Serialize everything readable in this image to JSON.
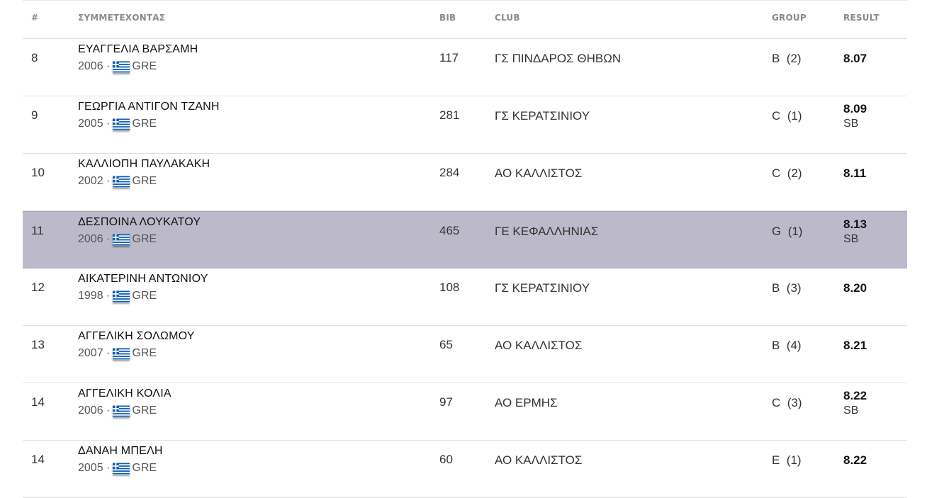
{
  "table": {
    "headers": {
      "rank": "#",
      "name": "ΣΥΜΜΕΤΕΧΟΝΤΑΣ",
      "bib": "BIB",
      "club": "CLUB",
      "group": "GROUP",
      "result": "RESULT"
    },
    "rows": [
      {
        "rank": "8",
        "name": "ΕΥΑΓΓΕΛΙΑ ΒΑΡΣΑΜΗ",
        "year": "2006",
        "country": "GRE",
        "bib": "117",
        "club": "ΓΣ ΠΙΝΔΑΡΟΣ ΘΗΒΩΝ",
        "group": "B",
        "group_pos": "(2)",
        "result": "8.07",
        "note": ""
      },
      {
        "rank": "9",
        "name": "ΓΕΩΡΓΙΑ ΑΝΤΙΓΟΝ ΤΖΑΝΗ",
        "year": "2005",
        "country": "GRE",
        "bib": "281",
        "club": "ΓΣ ΚΕΡΑΤΣΙΝΙΟΥ",
        "group": "C",
        "group_pos": "(1)",
        "result": "8.09",
        "note": "SB"
      },
      {
        "rank": "10",
        "name": "ΚΑΛΛΙΟΠΗ ΠΑΥΛΑΚΑΚΗ",
        "year": "2002",
        "country": "GRE",
        "bib": "284",
        "club": "ΑΟ ΚΑΛΛΙΣΤΟΣ",
        "group": "C",
        "group_pos": "(2)",
        "result": "8.11",
        "note": ""
      },
      {
        "rank": "11",
        "name": "ΔΕΣΠΟΙΝΑ ΛΟΥΚΑΤΟΥ",
        "year": "2006",
        "country": "GRE",
        "bib": "465",
        "club": "ΓΕ ΚΕΦΑΛΛΗΝΙΑΣ",
        "group": "G",
        "group_pos": "(1)",
        "result": "8.13",
        "note": "SB",
        "highlight": true
      },
      {
        "rank": "12",
        "name": "ΑΙΚΑΤΕΡΙΝΗ ΑΝΤΩΝΙΟΥ",
        "year": "1998",
        "country": "GRE",
        "bib": "108",
        "club": "ΓΣ ΚΕΡΑΤΣΙΝΙΟΥ",
        "group": "B",
        "group_pos": "(3)",
        "result": "8.20",
        "note": ""
      },
      {
        "rank": "13",
        "name": "ΑΓΓΕΛΙΚΗ ΣΟΛΩΜΟΥ",
        "year": "2007",
        "country": "GRE",
        "bib": "65",
        "club": "ΑΟ ΚΑΛΛΙΣΤΟΣ",
        "group": "B",
        "group_pos": "(4)",
        "result": "8.21",
        "note": ""
      },
      {
        "rank": "14",
        "name": "ΑΓΓΕΛΙΚΗ ΚΟΛΙΑ",
        "year": "2006",
        "country": "GRE",
        "bib": "97",
        "club": "ΑΟ ΕΡΜΗΣ",
        "group": "C",
        "group_pos": "(3)",
        "result": "8.22",
        "note": "SB"
      },
      {
        "rank": "14",
        "name": "ΔΑΝΑΗ ΜΠΕΛΗ",
        "year": "2005",
        "country": "GRE",
        "bib": "60",
        "club": "ΑΟ ΚΑΛΛΙΣΤΟΣ",
        "group": "E",
        "group_pos": "(1)",
        "result": "8.22",
        "note": ""
      }
    ]
  },
  "colors": {
    "highlight_row": "#bcbaca",
    "header_text": "#8a8a8a",
    "flag_blue": "#0d5eaf"
  },
  "icons": {
    "flag": "greece-flag-icon"
  }
}
